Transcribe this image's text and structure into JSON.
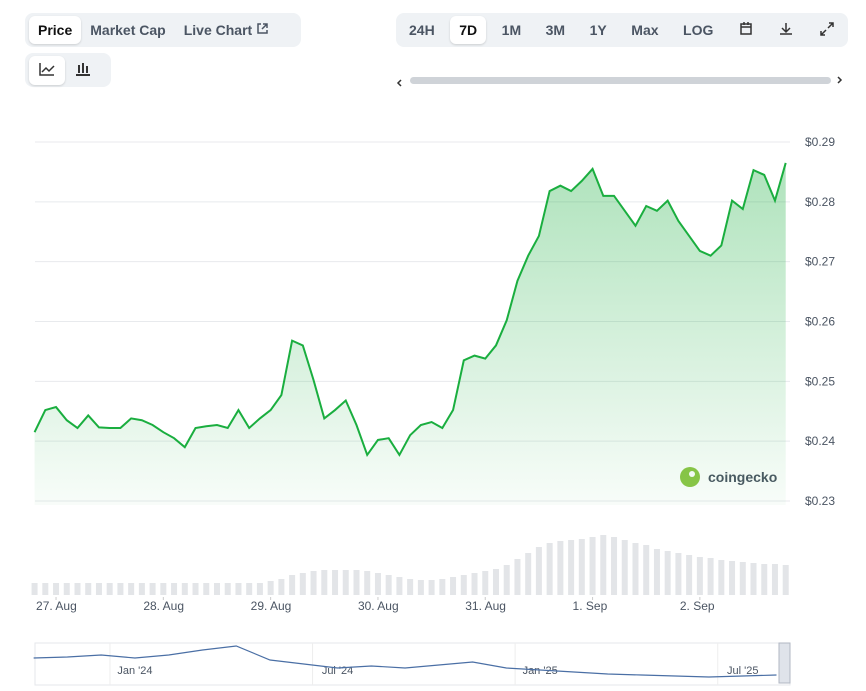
{
  "ui": {
    "tabs": [
      "Price",
      "Market Cap",
      "Live Chart"
    ],
    "ranges": [
      "24H",
      "7D",
      "1M",
      "3M",
      "1Y",
      "Max",
      "LOG"
    ],
    "watermark": "coingecko"
  },
  "chart_data": [
    {
      "type": "area",
      "color": "#1aae3f",
      "xlim": [
        -0.196,
        6.84
      ],
      "ylim": [
        0.23,
        0.29
      ],
      "xticks": [
        {
          "value": 0,
          "label": "27. Aug"
        },
        {
          "value": 1,
          "label": "28. Aug"
        },
        {
          "value": 2,
          "label": "29. Aug"
        },
        {
          "value": 3,
          "label": "30. Aug"
        },
        {
          "value": 4,
          "label": "31. Aug"
        },
        {
          "value": 5,
          "label": "1. Sep"
        },
        {
          "value": 6,
          "label": "2. Sep"
        }
      ],
      "yticks": [
        {
          "value": 0.23,
          "label": "$0.23"
        },
        {
          "value": 0.24,
          "label": "$0.24"
        },
        {
          "value": 0.25,
          "label": "$0.25"
        },
        {
          "value": 0.26,
          "label": "$0.26"
        },
        {
          "value": 0.27,
          "label": "$0.27"
        },
        {
          "value": 0.28,
          "label": "$0.28"
        },
        {
          "value": 0.29,
          "label": "$0.29"
        }
      ],
      "grid": true,
      "x": [
        -0.2,
        -0.1,
        0,
        0.1,
        0.2,
        0.3,
        0.4,
        0.5,
        0.6,
        0.7,
        0.8,
        0.9,
        1,
        1.1,
        1.2,
        1.3,
        1.4,
        1.5,
        1.6,
        1.7,
        1.8,
        1.9,
        2,
        2.1,
        2.2,
        2.3,
        2.4,
        2.5,
        2.6,
        2.7,
        2.8,
        2.9,
        3,
        3.1,
        3.2,
        3.3,
        3.4,
        3.5,
        3.6,
        3.7,
        3.8,
        3.9,
        4,
        4.1,
        4.2,
        4.3,
        4.4,
        4.5,
        4.6,
        4.7,
        4.8,
        4.9,
        5,
        5.1,
        5.2,
        5.3,
        5.4,
        5.5,
        5.6,
        5.7,
        5.8,
        5.9,
        6,
        6.1,
        6.2,
        6.3,
        6.4,
        6.5,
        6.6,
        6.7,
        6.8
      ],
      "values": [
        0.2415,
        0.2452,
        0.2457,
        0.2435,
        0.2422,
        0.2443,
        0.2423,
        0.2422,
        0.2422,
        0.2438,
        0.2435,
        0.2427,
        0.2415,
        0.2405,
        0.239,
        0.2422,
        0.2425,
        0.2427,
        0.2422,
        0.2452,
        0.2422,
        0.2438,
        0.2452,
        0.2477,
        0.2568,
        0.256,
        0.2502,
        0.2438,
        0.2452,
        0.2468,
        0.2427,
        0.2377,
        0.2402,
        0.2405,
        0.2377,
        0.241,
        0.2427,
        0.2432,
        0.2422,
        0.2452,
        0.2535,
        0.2543,
        0.2538,
        0.256,
        0.2602,
        0.2668,
        0.271,
        0.2743,
        0.2818,
        0.2827,
        0.2818,
        0.2835,
        0.2855,
        0.281,
        0.281,
        0.2785,
        0.276,
        0.2793,
        0.2785,
        0.2802,
        0.2768,
        0.2743,
        0.2718,
        0.271,
        0.2727,
        0.2802,
        0.2788,
        0.2853,
        0.2845,
        0.2802,
        0.2865
      ]
    },
    {
      "type": "bar",
      "color": "#e3e5e8",
      "xlim": [
        -0.196,
        6.84
      ],
      "ylim": [
        0,
        65
      ],
      "x": [
        -0.2,
        -0.1,
        0,
        0.1,
        0.2,
        0.3,
        0.4,
        0.5,
        0.6,
        0.7,
        0.8,
        0.9,
        1,
        1.1,
        1.2,
        1.3,
        1.4,
        1.5,
        1.6,
        1.7,
        1.8,
        1.9,
        2,
        2.1,
        2.2,
        2.3,
        2.4,
        2.5,
        2.6,
        2.7,
        2.8,
        2.9,
        3,
        3.1,
        3.2,
        3.3,
        3.4,
        3.5,
        3.6,
        3.7,
        3.8,
        3.9,
        4,
        4.1,
        4.2,
        4.3,
        4.4,
        4.5,
        4.6,
        4.7,
        4.8,
        4.9,
        5,
        5.1,
        5.2,
        5.3,
        5.4,
        5.5,
        5.6,
        5.7,
        5.8,
        5.9,
        6,
        6.1,
        6.2,
        6.3,
        6.4,
        6.5,
        6.6,
        6.7,
        6.8
      ],
      "values": [
        12,
        12,
        12,
        12,
        12,
        12,
        12,
        12,
        12,
        12,
        12,
        12,
        12,
        12,
        12,
        12,
        12,
        12,
        12,
        12,
        12,
        12,
        14,
        16,
        20,
        22,
        24,
        25,
        25,
        25,
        25,
        24,
        22,
        20,
        18,
        16,
        15,
        15,
        16,
        18,
        20,
        22,
        24,
        26,
        30,
        36,
        42,
        48,
        52,
        54,
        55,
        56,
        58,
        60,
        58,
        55,
        52,
        50,
        46,
        44,
        42,
        40,
        38,
        37,
        35,
        34,
        33,
        32,
        31,
        31,
        30
      ]
    },
    {
      "type": "line",
      "color": "#4a6fa5",
      "xlim": [
        -2.96,
        19.4
      ],
      "ylim": [
        0.2,
        0.6
      ],
      "xticks": [
        {
          "value": 0,
          "label": "Jan '24"
        },
        {
          "value": 6,
          "label": "Jul '24"
        },
        {
          "value": 12,
          "label": "Jan '25"
        },
        {
          "value": 18,
          "label": "Jul '25"
        }
      ],
      "x": [
        -3,
        -2,
        -1,
        0,
        1,
        2,
        3,
        4,
        5,
        6,
        7,
        8,
        9,
        10,
        11,
        12,
        13,
        14,
        15,
        16,
        17,
        18,
        19
      ],
      "values": [
        0.47,
        0.48,
        0.5,
        0.47,
        0.5,
        0.55,
        0.59,
        0.45,
        0.41,
        0.37,
        0.39,
        0.37,
        0.4,
        0.43,
        0.37,
        0.35,
        0.33,
        0.31,
        0.3,
        0.29,
        0.28,
        0.29,
        0.3
      ]
    }
  ]
}
